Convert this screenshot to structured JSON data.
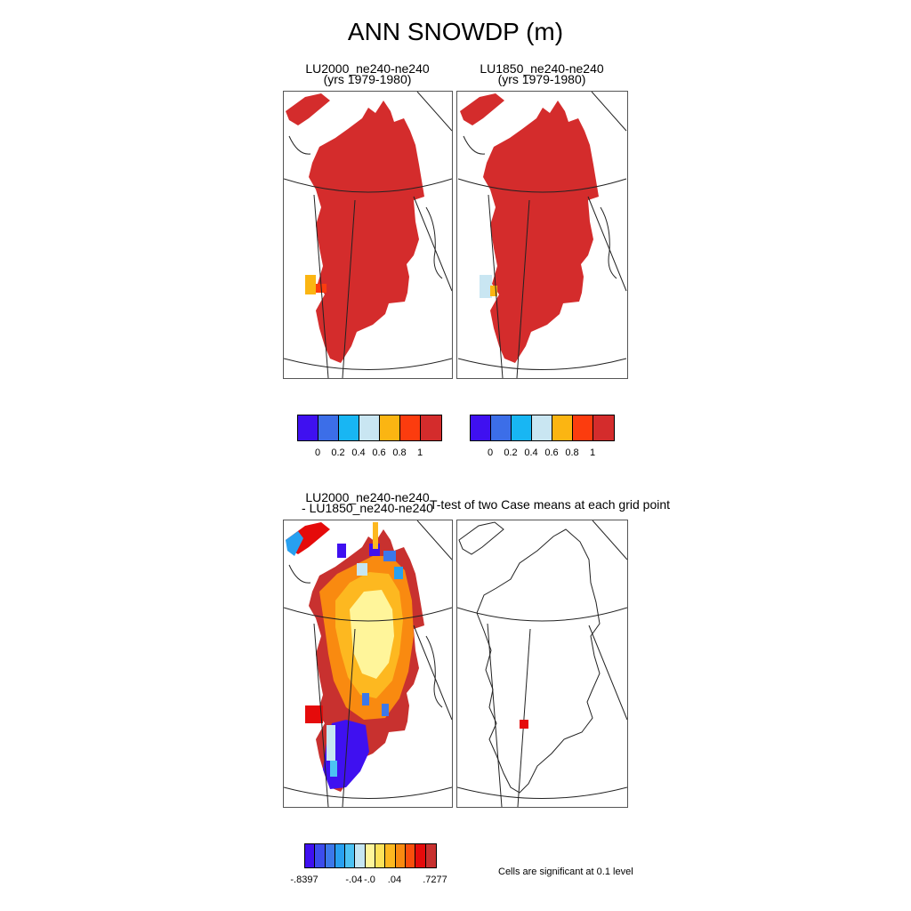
{
  "title": "ANN SNOWDP (m)",
  "panels": {
    "p1": {
      "line1": "LU2000_ne240-ne240",
      "line2": "(yrs 1979-1980)"
    },
    "p2": {
      "line1": "LU1850_ne240-ne240",
      "line2": "(yrs 1979-1980)"
    },
    "p3": {
      "line1": "LU2000_ne240-ne240",
      "line2": "- LU1850_ne240-ne240"
    },
    "p4": {
      "line1": "T-test of two Case means at each grid point"
    }
  },
  "colorbar_top": {
    "colors": [
      "#3f10f0",
      "#3c6ee8",
      "#18b6f3",
      "#c9e6f2",
      "#fbb512",
      "#fc3c0e",
      "#d42c2c"
    ],
    "ticks": [
      "0",
      "0.2",
      "0.4",
      "0.6",
      "0.8",
      "1"
    ]
  },
  "colorbar_diff": {
    "colors": [
      "#3f10f0",
      "#3c4cec",
      "#3c78ea",
      "#28a0f0",
      "#4cc2f3",
      "#c6e6f2",
      "#fff59a",
      "#fde25a",
      "#fdb820",
      "#f98a10",
      "#f94e0c",
      "#e50b0b",
      "#c8312f"
    ],
    "ticks": [
      "-.8397",
      "-.04",
      "-.0",
      ".04",
      ".7277"
    ]
  },
  "significance_note": "Cells are significant at 0.1 level",
  "chart_data": [
    {
      "type": "heatmap",
      "title": "LU2000_ne240-ne240 (yrs 1979-1980)",
      "variable": "ANN SNOWDP (m)",
      "region": "Greenland",
      "value_range": [
        0,
        1
      ],
      "dominant_value": 1.0,
      "note": "nearly all ice-sheet cells at highest level (>1 m); small west-coast patch 0.8"
    },
    {
      "type": "heatmap",
      "title": "LU1850_ne240-ne240 (yrs 1979-1980)",
      "variable": "ANN SNOWDP (m)",
      "region": "Greenland",
      "value_range": [
        0,
        1
      ],
      "dominant_value": 1.0,
      "note": "nearly all ice-sheet cells at highest level (>1 m); small west-coast patch 0.6-0.8"
    },
    {
      "type": "heatmap",
      "title": "LU2000_ne240-ne240 - LU1850_ne240-ne240",
      "variable": "ANN SNOWDP (m) difference",
      "region": "Greenland",
      "value_range": [
        -0.8397,
        0.7277
      ],
      "note": "positive margins, near-zero interior, negative southern tip"
    },
    {
      "type": "heatmap",
      "title": "T-test of two Case means at each grid point",
      "note": "single significant cell in central-west Greenland"
    }
  ]
}
